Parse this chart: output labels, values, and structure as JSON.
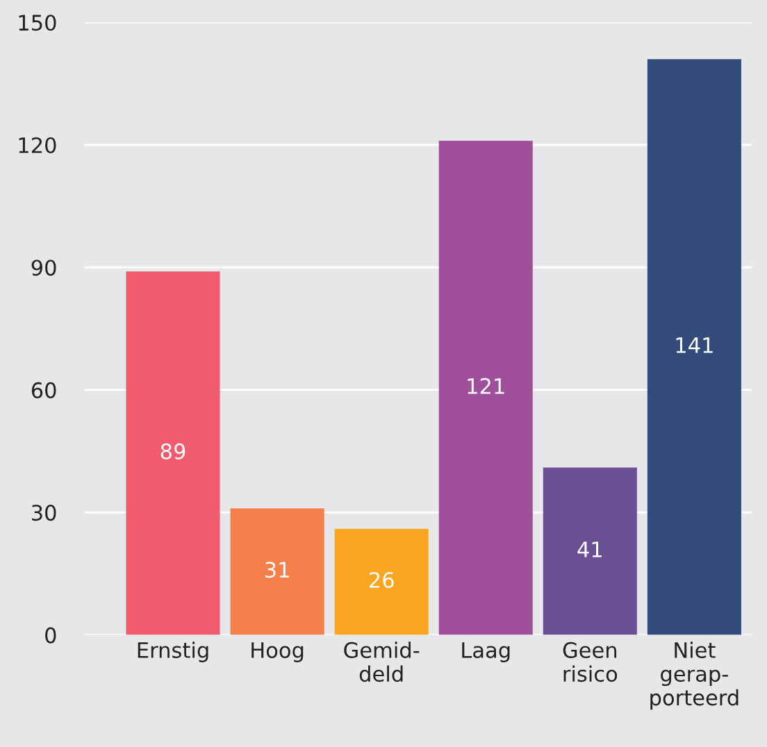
{
  "chart_data": {
    "type": "bar",
    "categories": [
      "Ernstig",
      "Hoog",
      "Gemid-\ndeld",
      "Laag",
      "Geen\nrisico",
      "Niet\ngerap-\nporteerd"
    ],
    "values": [
      89,
      31,
      26,
      121,
      41,
      141
    ],
    "colors": [
      "#f05c6e",
      "#f47f4a",
      "#f9a51f",
      "#a0509a",
      "#6a4f96",
      "#324b7a"
    ],
    "ylim": [
      0,
      150
    ],
    "yticks": [
      0,
      30,
      60,
      90,
      120,
      150
    ],
    "grid": "y",
    "data_labels": true
  }
}
